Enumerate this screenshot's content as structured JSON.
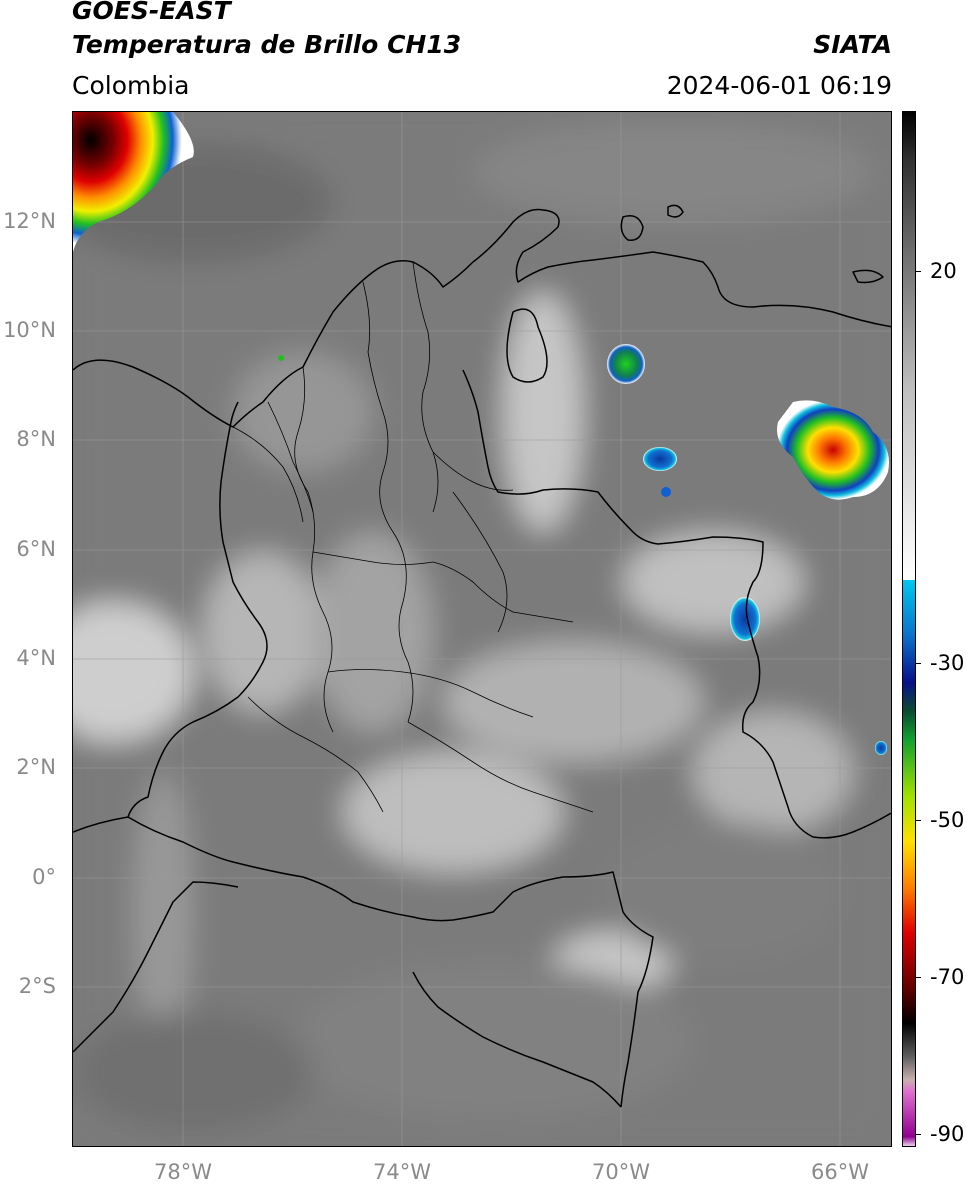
{
  "header": {
    "satellite": "GOES-EAST",
    "product": "Temperatura de Brillo CH13",
    "agency": "SIATA",
    "region": "Colombia",
    "datetime": "2024-06-01 06:19"
  },
  "map": {
    "lat_labels": [
      {
        "text": "12°N",
        "lat": 12
      },
      {
        "text": "10°N",
        "lat": 10
      },
      {
        "text": "8°N",
        "lat": 8
      },
      {
        "text": "6°N",
        "lat": 6
      },
      {
        "text": "4°N",
        "lat": 4
      },
      {
        "text": "2°N",
        "lat": 2
      },
      {
        "text": "0°",
        "lat": 0
      },
      {
        "text": "2°S",
        "lat": -2
      }
    ],
    "lon_labels": [
      {
        "text": "78°W",
        "lon": -78
      },
      {
        "text": "74°W",
        "lon": -74
      },
      {
        "text": "70°W",
        "lon": -70
      },
      {
        "text": "66°W",
        "lon": -66
      }
    ],
    "extent": {
      "lon_min": -80,
      "lon_max": -65,
      "lat_min": -5,
      "lat_max": 14
    },
    "colors": {
      "background": "#7a7a7a",
      "coast": "#000000",
      "grid": "#9a9a9a"
    }
  },
  "colorbar": {
    "labels": [
      {
        "text": "20",
        "value": 20
      },
      {
        "text": "-30",
        "value": -30
      },
      {
        "text": "-50",
        "value": -50
      },
      {
        "text": "-70",
        "value": -70
      },
      {
        "text": "-90",
        "value": -90
      }
    ],
    "range": [
      -92,
      35
    ]
  }
}
